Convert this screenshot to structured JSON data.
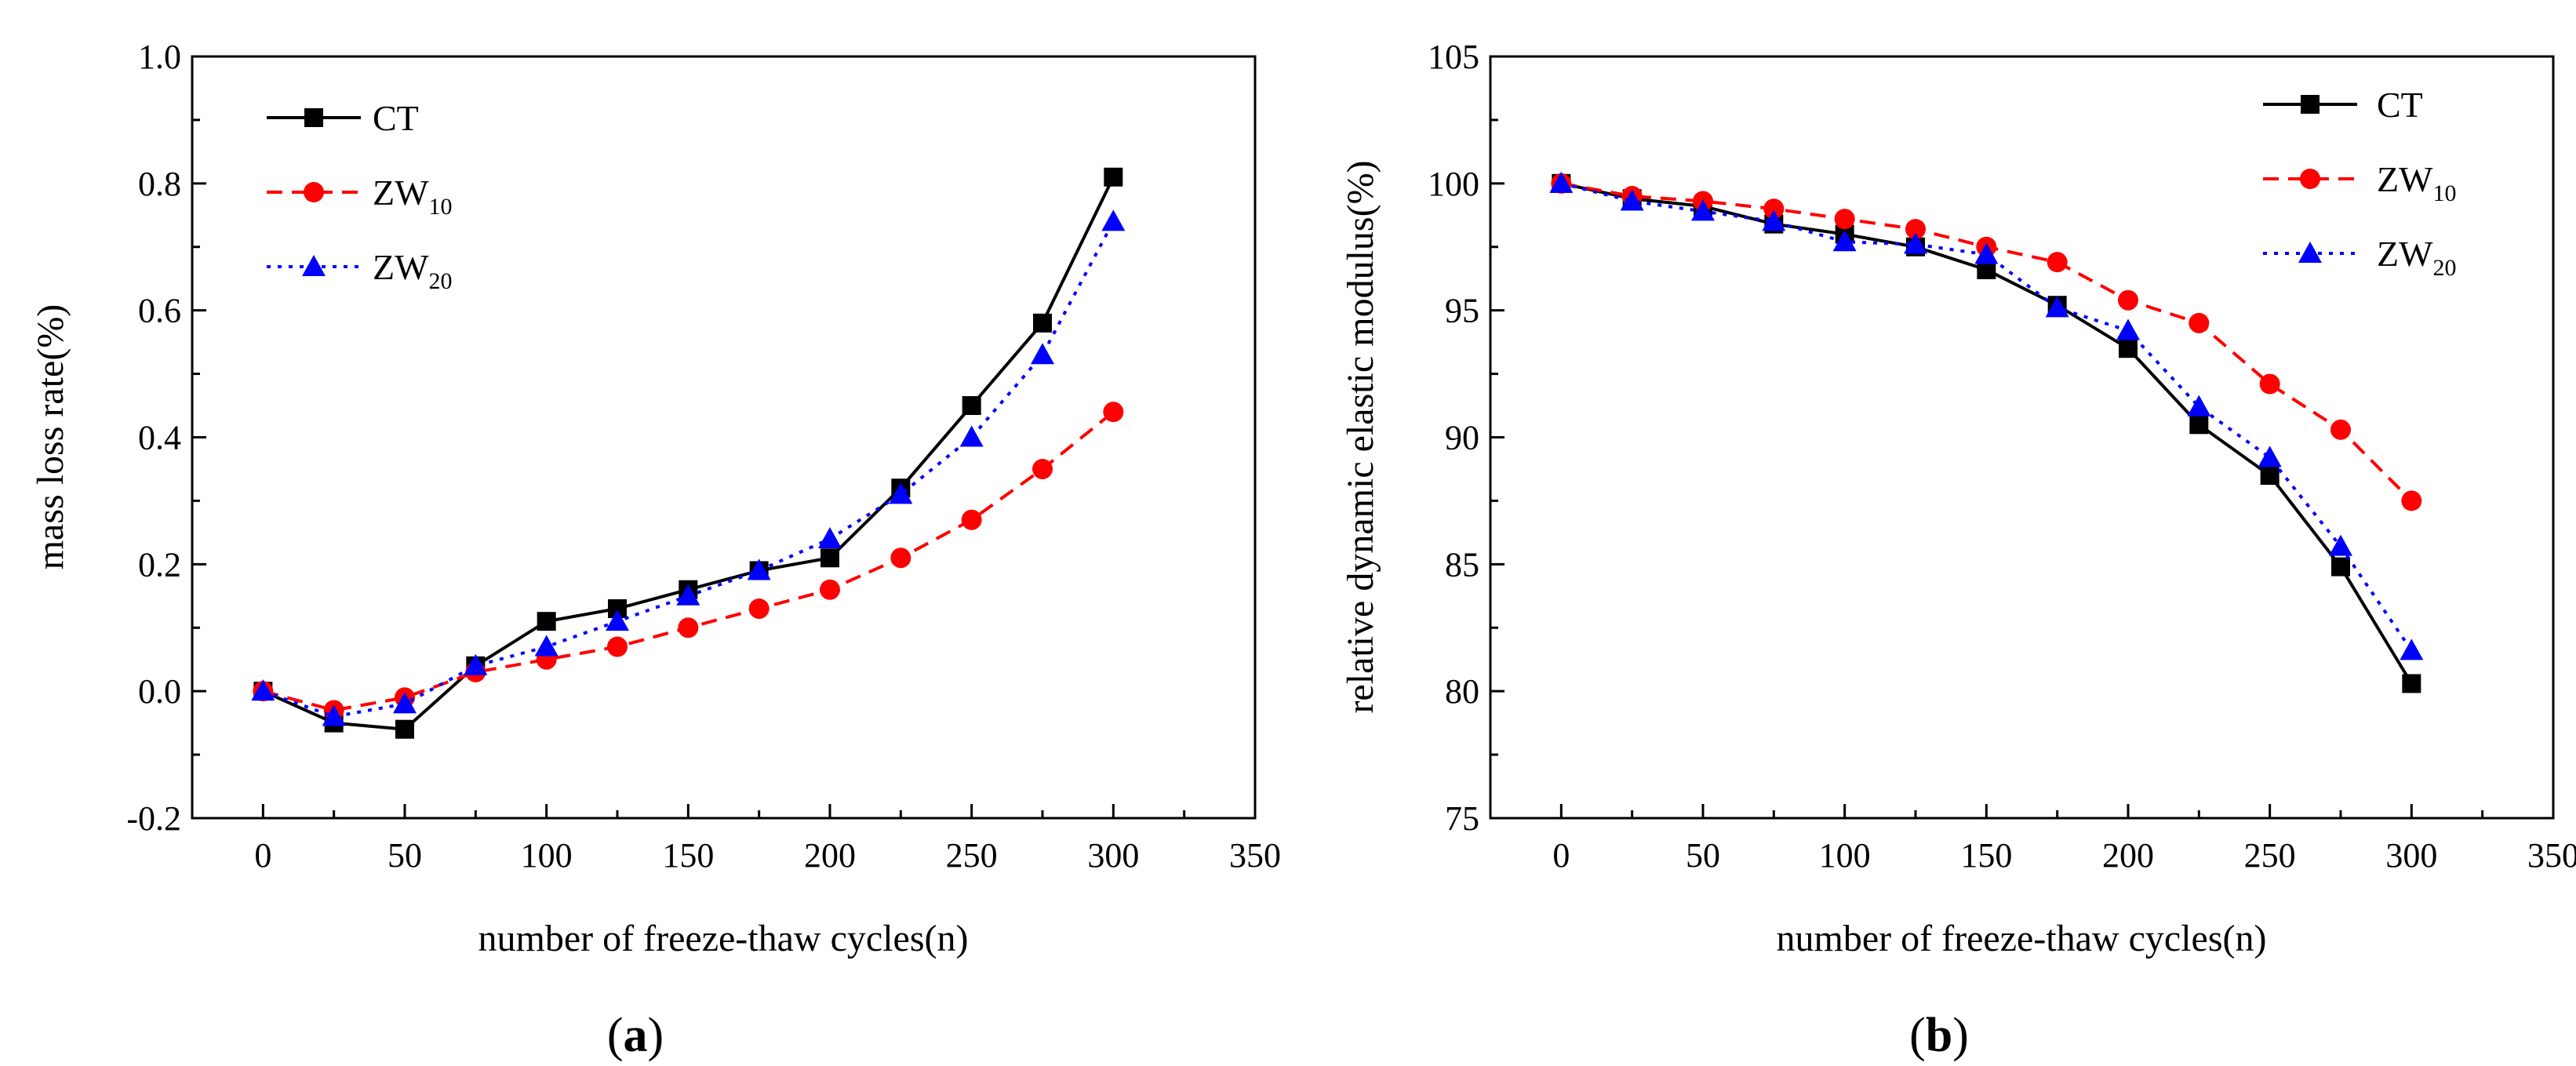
{
  "chart_data": [
    {
      "type": "line",
      "id": "a",
      "panel_label": "(a)",
      "panel_label_parts": [
        "(",
        "a",
        ")"
      ],
      "xlabel": "number of freeze-thaw cycles(n)",
      "ylabel": "mass loss rate(%)",
      "xlim": [
        -25,
        350
      ],
      "ylim": [
        -0.2,
        1.0
      ],
      "xticks": [
        0,
        50,
        100,
        150,
        200,
        250,
        300,
        350
      ],
      "xtick_labels": [
        "0",
        "50",
        "100",
        "150",
        "200",
        "250",
        "300",
        "350"
      ],
      "yticks": [
        -0.2,
        0.0,
        0.2,
        0.4,
        0.6,
        0.8,
        1.0
      ],
      "ytick_labels": [
        "-0.2",
        "0.0",
        "0.2",
        "0.4",
        "0.6",
        "0.8",
        "1.0"
      ],
      "legend_position": "top-left",
      "x": [
        0,
        25,
        50,
        75,
        100,
        125,
        150,
        175,
        200,
        225,
        250,
        275,
        300
      ],
      "series": [
        {
          "name": "CT",
          "label_main": "CT",
          "label_sub": "",
          "color": "#000000",
          "dash": "solid",
          "marker": "square",
          "values": [
            0.0,
            -0.05,
            -0.06,
            0.04,
            0.11,
            0.13,
            0.16,
            0.19,
            0.21,
            0.32,
            0.45,
            0.58,
            0.81
          ]
        },
        {
          "name": "ZW10",
          "label_main": "ZW",
          "label_sub": "10",
          "color": "#ff0000",
          "dash": "dashed",
          "marker": "circle",
          "values": [
            0.0,
            -0.03,
            -0.01,
            0.03,
            0.05,
            0.07,
            0.1,
            0.13,
            0.16,
            0.21,
            0.27,
            0.35,
            0.44
          ]
        },
        {
          "name": "ZW20",
          "label_main": "ZW",
          "label_sub": "20",
          "color": "#0000ff",
          "dash": "dotted",
          "marker": "triangle",
          "values": [
            0.0,
            -0.04,
            -0.02,
            0.04,
            0.07,
            0.11,
            0.15,
            0.19,
            0.24,
            0.31,
            0.4,
            0.53,
            0.74
          ]
        }
      ]
    },
    {
      "type": "line",
      "id": "b",
      "panel_label": "(b)",
      "panel_label_parts": [
        "(",
        "b",
        ")"
      ],
      "xlabel": "number of freeze-thaw cycles(n)",
      "ylabel": "relative dynamic elastic modulus(%)",
      "xlim": [
        -25,
        350
      ],
      "ylim": [
        75,
        105
      ],
      "xticks": [
        0,
        50,
        100,
        150,
        200,
        250,
        300,
        350
      ],
      "xtick_labels": [
        "0",
        "50",
        "100",
        "150",
        "200",
        "250",
        "300",
        "350"
      ],
      "yticks": [
        75,
        80,
        85,
        90,
        95,
        100,
        105
      ],
      "ytick_labels": [
        "75",
        "80",
        "85",
        "90",
        "95",
        "100",
        "105"
      ],
      "legend_position": "top-right",
      "x": [
        0,
        25,
        50,
        75,
        100,
        125,
        150,
        175,
        200,
        225,
        250,
        275,
        300
      ],
      "series": [
        {
          "name": "CT",
          "label_main": "CT",
          "label_sub": "",
          "color": "#000000",
          "dash": "solid",
          "marker": "square",
          "values": [
            100.0,
            99.4,
            99.1,
            98.4,
            98.0,
            97.5,
            96.6,
            95.2,
            93.5,
            90.5,
            88.5,
            84.9,
            80.3
          ]
        },
        {
          "name": "ZW10",
          "label_main": "ZW",
          "label_sub": "10",
          "color": "#ff0000",
          "dash": "dashed",
          "marker": "circle",
          "values": [
            100.0,
            99.5,
            99.3,
            99.0,
            98.6,
            98.2,
            97.5,
            96.9,
            95.4,
            94.5,
            92.1,
            90.3,
            87.5
          ]
        },
        {
          "name": "ZW20",
          "label_main": "ZW",
          "label_sub": "20",
          "color": "#0000ff",
          "dash": "dotted",
          "marker": "triangle",
          "values": [
            100.0,
            99.3,
            98.9,
            98.5,
            97.7,
            97.6,
            97.2,
            95.1,
            94.2,
            91.2,
            89.2,
            85.7,
            81.6
          ]
        }
      ]
    }
  ]
}
